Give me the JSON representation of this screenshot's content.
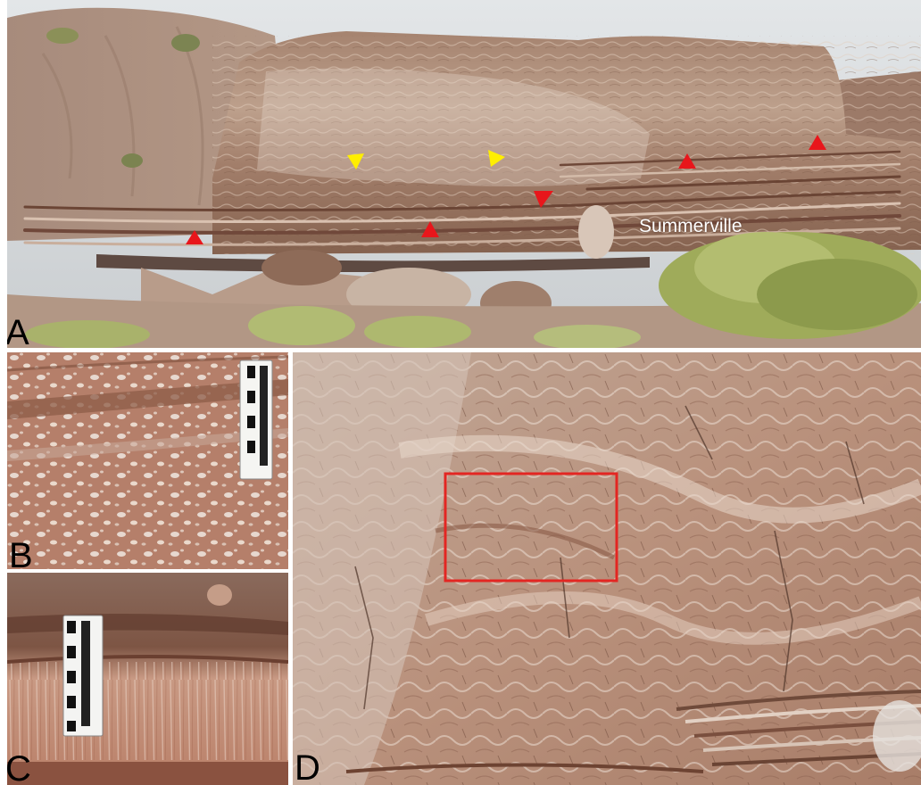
{
  "panels": {
    "a": {
      "label": "A",
      "annotation": "Summerville"
    },
    "b": {
      "label": "B"
    },
    "c": {
      "label": "C"
    },
    "d": {
      "label": "D"
    }
  },
  "colors": {
    "sky": "#d7dbde",
    "rock_light": "#c9ad98",
    "rock_mid": "#a4826c",
    "rock_dark": "#6e4a3c",
    "vegetation": "#a7b266",
    "marker_red": "#e8161b",
    "marker_yellow": "#ffee00",
    "box_red": "#e32622"
  }
}
